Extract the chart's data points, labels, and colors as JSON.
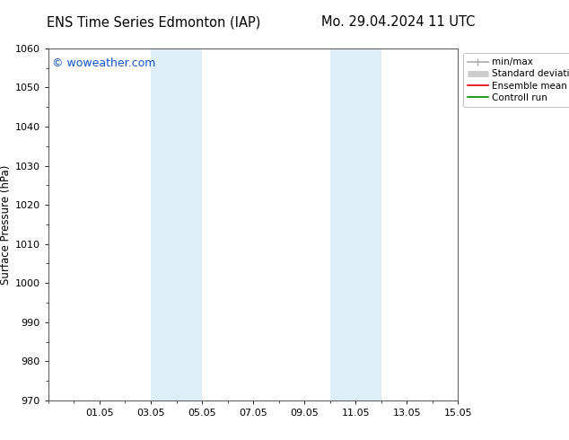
{
  "title_left": "ENS Time Series Edmonton (IAP)",
  "title_right": "Mo. 29.04.2024 11 UTC",
  "ylabel": "Surface Pressure (hPa)",
  "watermark": "© woweather.com",
  "ylim": [
    970,
    1060
  ],
  "yticks": [
    970,
    980,
    990,
    1000,
    1010,
    1020,
    1030,
    1040,
    1050,
    1060
  ],
  "xlim": [
    0,
    16
  ],
  "xtick_labels": [
    "01.05",
    "03.05",
    "05.05",
    "07.05",
    "09.05",
    "11.05",
    "13.05",
    "15.05"
  ],
  "xtick_positions": [
    2,
    4,
    6,
    8,
    10,
    12,
    14,
    16
  ],
  "shaded_regions": [
    {
      "start": 4.0,
      "end": 6.0,
      "color": "#ddeef8"
    },
    {
      "start": 11.0,
      "end": 13.0,
      "color": "#ddeef8"
    }
  ],
  "legend_labels": [
    "min/max",
    "Standard deviation",
    "Ensemble mean run",
    "Controll run"
  ],
  "legend_colors": [
    "#aaaaaa",
    "#cccccc",
    "#dd0000",
    "#008800"
  ],
  "legend_lws": [
    1.2,
    5,
    1.2,
    1.2
  ],
  "background_color": "#ffffff",
  "plot_bg_color": "#ffffff",
  "title_fontsize": 10.5,
  "ylabel_fontsize": 8.5,
  "tick_fontsize": 8,
  "legend_fontsize": 7.5,
  "watermark_fontsize": 9,
  "watermark_color": "#1155cc"
}
